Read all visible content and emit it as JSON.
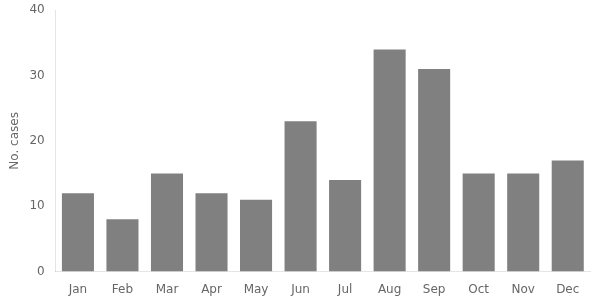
{
  "chart_data": {
    "type": "bar",
    "categories": [
      "Jan",
      "Feb",
      "Mar",
      "Apr",
      "May",
      "Jun",
      "Jul",
      "Aug",
      "Sep",
      "Oct",
      "Nov",
      "Dec"
    ],
    "values": [
      12,
      8,
      15,
      12,
      11,
      23,
      14,
      34,
      31,
      15,
      15,
      17
    ],
    "color": "#808080",
    "ylabel": "No. cases",
    "ylim": [
      0,
      40
    ],
    "yticks": [
      0,
      10,
      20,
      30,
      40
    ],
    "grid": false
  }
}
